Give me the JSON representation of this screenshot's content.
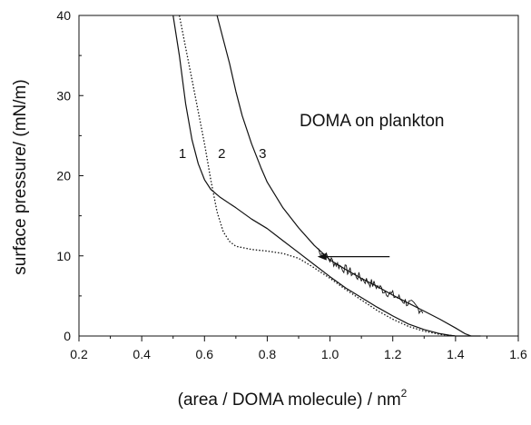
{
  "chart_data": {
    "type": "line",
    "title": "",
    "xlabel": "(area / DOMA molecule) / nm",
    "xlabel_sup": "2",
    "ylabel": "surface pressure/ (mN/m)",
    "xlim": [
      0.2,
      1.6
    ],
    "ylim": [
      0,
      40
    ],
    "xticks": [
      "0.2",
      "0.4",
      "0.6",
      "0.8",
      "1.0",
      "1.2",
      "1.4",
      "1.6"
    ],
    "yticks": [
      "0",
      "10",
      "20",
      "30",
      "40"
    ],
    "annotation": "DOMA on plankton",
    "arrow": {
      "from": [
        1.19,
        9.9
      ],
      "to": [
        0.96,
        9.9
      ]
    },
    "series": [
      {
        "name": "1",
        "style": "solid",
        "x": [
          0.5,
          0.52,
          0.54,
          0.56,
          0.58,
          0.6,
          0.62,
          0.65,
          0.7,
          0.75,
          0.8,
          0.85,
          0.9,
          0.95,
          1.0,
          1.05,
          1.1,
          1.15,
          1.2,
          1.25,
          1.3,
          1.35,
          1.38,
          1.4,
          1.45
        ],
        "y": [
          40,
          35,
          29,
          24.5,
          21.5,
          19.5,
          18.3,
          17.3,
          16,
          14.6,
          13.4,
          11.9,
          10.4,
          8.9,
          7.4,
          6.0,
          4.8,
          3.6,
          2.5,
          1.5,
          0.8,
          0.3,
          0.1,
          0,
          0
        ]
      },
      {
        "name": "2",
        "style": "dotted",
        "x": [
          0.52,
          0.54,
          0.56,
          0.58,
          0.6,
          0.62,
          0.64,
          0.66,
          0.68,
          0.7,
          0.75,
          0.8,
          0.85,
          0.9,
          0.95,
          1.0,
          1.05,
          1.1,
          1.15,
          1.2,
          1.25,
          1.3,
          1.35,
          1.4
        ],
        "y": [
          40,
          36,
          32,
          28,
          24,
          19.5,
          15.5,
          13,
          11.8,
          11.2,
          10.8,
          10.6,
          10.3,
          9.7,
          8.5,
          7.2,
          5.8,
          4.5,
          3.2,
          2.1,
          1.2,
          0.6,
          0.2,
          0
        ]
      },
      {
        "name": "3",
        "style": "solid",
        "x": [
          0.64,
          0.66,
          0.68,
          0.7,
          0.72,
          0.75,
          0.78,
          0.8,
          0.85,
          0.9,
          0.95,
          1.0,
          1.05,
          1.1,
          1.15,
          1.2,
          1.25,
          1.3,
          1.35,
          1.4,
          1.43,
          1.45,
          1.48
        ],
        "y": [
          40,
          37,
          34,
          30.5,
          27.5,
          24,
          21,
          19.2,
          16,
          13.5,
          11.3,
          9.5,
          8.3,
          7.2,
          6.2,
          5.1,
          4.1,
          3.1,
          2.1,
          1.0,
          0.3,
          0,
          0
        ]
      }
    ],
    "curve_labels": [
      {
        "text": "1",
        "x": 0.53,
        "y": 22.2
      },
      {
        "text": "2",
        "x": 0.655,
        "y": 22.2
      },
      {
        "text": "3",
        "x": 0.785,
        "y": 22.2
      }
    ]
  }
}
